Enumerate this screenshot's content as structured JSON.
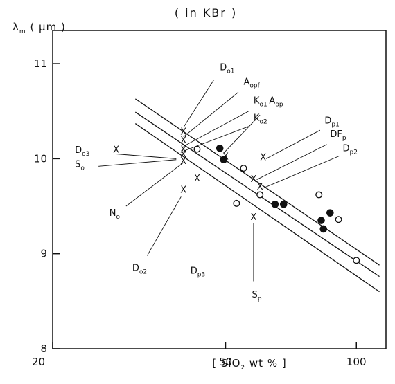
{
  "chart_data": {
    "type": "scatter",
    "title": "( in KBr )",
    "xlabel": "[ SiO2 wt % ]",
    "ylabel": "λm ( μm )",
    "xlim": [
      20,
      117
    ],
    "ylim": [
      8,
      11.35
    ],
    "x_ticks": [
      {
        "v": 20,
        "label": "20"
      },
      {
        "v": 50,
        "label": "50"
      },
      {
        "v": 100,
        "label": "100"
      }
    ],
    "y_ticks": [
      {
        "v": 8,
        "label": "8"
      },
      {
        "v": 9,
        "label": "9"
      },
      {
        "v": 10,
        "label": "10"
      },
      {
        "v": 11,
        "label": "11"
      }
    ],
    "grid": false,
    "lines": [
      {
        "x": [
          31,
          113
        ],
        "y": [
          10.63,
          8.88
        ]
      },
      {
        "x": [
          31,
          113
        ],
        "y": [
          10.49,
          8.76
        ]
      },
      {
        "x": [
          31,
          113
        ],
        "y": [
          10.37,
          8.6
        ]
      }
    ],
    "series": [
      {
        "marker": "open-circle",
        "points": [
          [
            43,
            10.1
          ],
          [
            55,
            9.9
          ],
          [
            53,
            9.53
          ],
          [
            60,
            9.62
          ],
          [
            82,
            9.62
          ],
          [
            91,
            9.36
          ],
          [
            100,
            8.93
          ]
        ]
      },
      {
        "marker": "filled-circle",
        "points": [
          [
            48.5,
            10.11
          ],
          [
            49.5,
            9.99
          ],
          [
            65,
            9.52
          ],
          [
            68,
            9.52
          ],
          [
            83,
            9.35
          ],
          [
            84,
            9.26
          ],
          [
            87,
            9.43
          ]
        ]
      },
      {
        "marker": "cross",
        "points": [
          [
            28,
            10.1
          ],
          [
            40,
            10.29
          ],
          [
            40,
            10.2
          ],
          [
            40,
            10.1
          ],
          [
            40,
            10.05
          ],
          [
            40,
            9.98
          ],
          [
            40,
            9.68
          ],
          [
            43,
            9.8
          ],
          [
            50,
            10.03
          ],
          [
            61,
            10.02
          ],
          [
            58,
            9.79
          ],
          [
            60,
            9.71
          ],
          [
            58,
            9.39
          ]
        ]
      }
    ],
    "annotations": [
      {
        "main": "D",
        "sub": "o1",
        "x": 48.5,
        "y": 10.93,
        "leader": [
          [
            47,
            10.83
          ],
          [
            40,
            10.33
          ]
        ]
      },
      {
        "main": "A",
        "sub": "opf",
        "x": 55,
        "y": 10.78,
        "leader": [
          [
            53.5,
            10.7
          ],
          [
            40,
            10.23
          ]
        ]
      },
      {
        "main": "K",
        "sub": "o1",
        "x": 58,
        "y": 10.58,
        "leader": [
          [
            56.5,
            10.5
          ],
          [
            40,
            10.13
          ]
        ]
      },
      {
        "main": "A",
        "sub": "op",
        "x": 63,
        "y": 10.58,
        "leader": [
          [
            60,
            10.46
          ],
          [
            49.5,
            10.06
          ]
        ]
      },
      {
        "main": "K",
        "sub": "o2",
        "x": 58,
        "y": 10.4,
        "leader": [
          [
            56.5,
            10.34
          ],
          [
            40,
            10.08
          ]
        ]
      },
      {
        "main": "D",
        "sub": "o3",
        "x": 22.5,
        "y": 10.06,
        "leader": [
          [
            28,
            10.05
          ],
          [
            38.5,
            10.0
          ]
        ]
      },
      {
        "main": "S",
        "sub": "o",
        "x": 22.5,
        "y": 9.91,
        "leader": [
          [
            25.5,
            9.92
          ],
          [
            38.5,
            9.99
          ]
        ]
      },
      {
        "main": "N",
        "sub": "o",
        "x": 27,
        "y": 9.4,
        "leader": [
          [
            29.5,
            9.5
          ],
          [
            40,
            9.96
          ]
        ]
      },
      {
        "main": "D",
        "sub": "o2",
        "x": 30.5,
        "y": 8.82,
        "leader": [
          [
            33,
            8.98
          ],
          [
            39.5,
            9.6
          ]
        ]
      },
      {
        "main": "D",
        "sub": "p3",
        "x": 41.5,
        "y": 8.79,
        "leader": [
          [
            43,
            8.94
          ],
          [
            43,
            9.72
          ]
        ]
      },
      {
        "main": "S",
        "sub": "p",
        "x": 57.5,
        "y": 8.54,
        "leader": [
          [
            58,
            8.71
          ],
          [
            58,
            9.32
          ]
        ]
      },
      {
        "main": "D",
        "sub": "p1",
        "x": 84.5,
        "y": 10.37,
        "leader": [
          [
            82.5,
            10.3
          ],
          [
            62,
            10.0
          ]
        ]
      },
      {
        "main": "DF",
        "sub": "p",
        "x": 87,
        "y": 10.23,
        "leader": [
          [
            85.5,
            10.15
          ],
          [
            59,
            9.78
          ]
        ]
      },
      {
        "main": "D",
        "sub": "p2",
        "x": 93,
        "y": 10.08,
        "leader": [
          [
            91.5,
            10.03
          ],
          [
            61,
            9.69
          ]
        ]
      }
    ]
  }
}
